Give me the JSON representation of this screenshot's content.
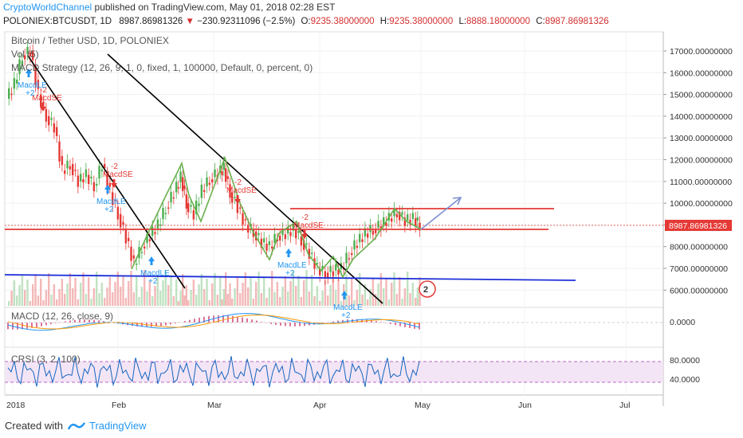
{
  "header": {
    "author": "CryptoWorldChannel",
    "published_text": "published on TradingView.com, May 01, 2018 02:28 EST",
    "symbol": "POLONIEX:BTCUSDT, 1D",
    "last": "8987.86981326",
    "change": "−230.92311096 (−2.5%)",
    "o_label": "O:",
    "o_value": "9235.38000000",
    "h_label": "H:",
    "h_value": "9235.38000000",
    "l_label": "L:",
    "l_value": "8888.18000000",
    "c_label": "C:",
    "c_value": "8987.86981326",
    "down_arrow": "▼"
  },
  "legend": {
    "title": "Bitcoin / Tether USD, 1D, POLONIEX",
    "vol": "Vol (5)",
    "strategy": "MACD Strategy (12, 26, 9, 1, 0, fixed, 1, 100000, Default, 0, percent, 0)",
    "macd": "MACD (12, 26, close, 9)",
    "crsi": "CRSI (3, 2, 100)"
  },
  "price_axis": [
    "17000.00000000",
    "16000.00000000",
    "15000.00000000",
    "14000.00000000",
    "13000.00000000",
    "12000.00000000",
    "11000.00000000",
    "10000.00000000",
    "9000.00000000",
    "8000.00000000",
    "7000.00000000",
    "6000.00000000"
  ],
  "price_tag": "8987.86981326",
  "macd_axis": [
    "0.0000"
  ],
  "crsi_axis": [
    "80.0000",
    "40.0000"
  ],
  "time_axis": [
    "2018",
    "Feb",
    "Mar",
    "Apr",
    "May",
    "Jun",
    "Jul"
  ],
  "signals": {
    "macdle": "MacdLE",
    "macdse": "MacdSE",
    "plus2": "+2",
    "minus2": "-2"
  },
  "badge": "2",
  "footer": {
    "created": "Created with",
    "brand": "TradingView"
  },
  "colors": {
    "up": "#4caf50",
    "down": "#e53935",
    "accent": "#2196f3",
    "trend": "#000000",
    "support": "#1e2fd8",
    "resistance": "#e53935",
    "pattern": "#6ab04c",
    "projection": "#7d8fd0",
    "crsi_band": "#e1bee7"
  }
}
